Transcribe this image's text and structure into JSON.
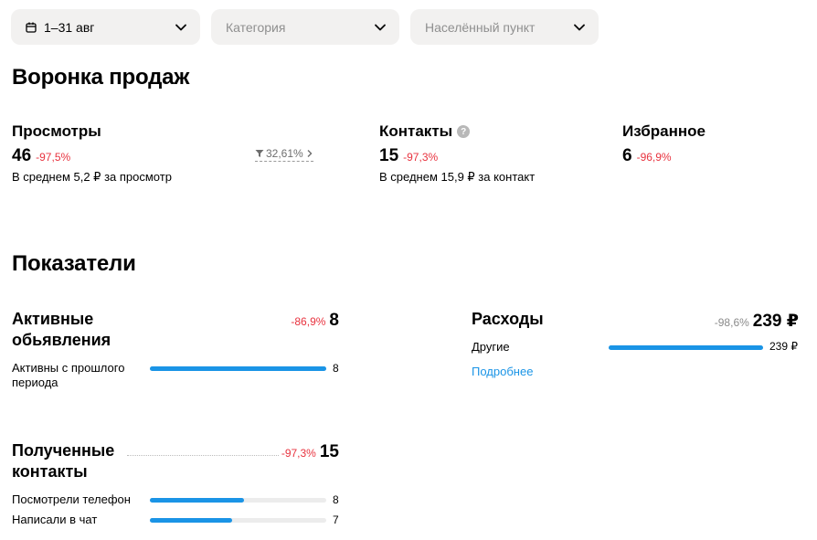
{
  "filters": {
    "period": "1–31 авг",
    "category_placeholder": "Категория",
    "location_placeholder": "Населённый пункт"
  },
  "funnel": {
    "title": "Воронка продаж",
    "views": {
      "label": "Просмотры",
      "value": "46",
      "delta": "-97,5%",
      "sub": "В среднем 5,2 ₽ за просмотр"
    },
    "conversion": "32,61%",
    "contacts": {
      "label": "Контакты",
      "value": "15",
      "delta": "-97,3%",
      "sub": "В среднем 15,9 ₽ за контакт",
      "help": "?"
    },
    "favorites": {
      "label": "Избранное",
      "value": "6",
      "delta": "-96,9%"
    }
  },
  "indicators": {
    "title": "Показатели",
    "active_ads": {
      "title_line1": "Активные",
      "title_line2": "обьявления",
      "delta": "-86,9%",
      "value": "8",
      "rows": [
        {
          "label_line1": "Активны с прошлого",
          "label_line2": "периода",
          "value": "8",
          "fill": 1.0
        }
      ]
    },
    "expenses": {
      "title": "Расходы",
      "delta": "-98,6%",
      "value": "239 ₽",
      "rows": [
        {
          "label": "Другие",
          "value": "239 ₽",
          "fill": 1.0
        }
      ],
      "more_link": "Подробнее"
    },
    "contacts_received": {
      "title_line1": "Полученные",
      "title_line2": "контакты",
      "delta": "-97,3%",
      "value": "15",
      "rows": [
        {
          "label": "Посмотрели телефон",
          "value": "8",
          "fill": 0.533
        },
        {
          "label": "Написали в чат",
          "value": "7",
          "fill": 0.467
        }
      ]
    }
  },
  "colors": {
    "accent": "#1a94e6",
    "negative": "#e8333f",
    "filter_bg": "#f2f1f0"
  }
}
